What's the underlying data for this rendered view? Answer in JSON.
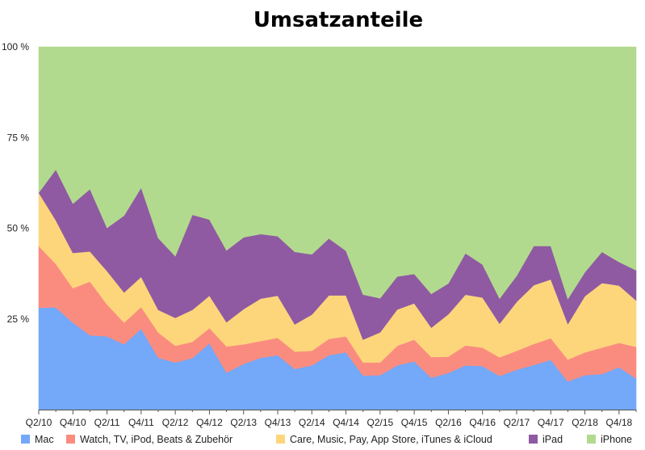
{
  "chart_data": {
    "type": "area",
    "stacked": true,
    "normalized": true,
    "title": "Umsatzanteile",
    "xlabel": "",
    "ylabel": "",
    "ylim": [
      0,
      100
    ],
    "y_ticks": [
      {
        "value": 25,
        "label": "25 %"
      },
      {
        "value": 50,
        "label": "50 %"
      },
      {
        "value": 75,
        "label": "75 %"
      },
      {
        "value": 100,
        "label": "100 %"
      }
    ],
    "x": [
      "Q2/10",
      "Q3/10",
      "Q4/10",
      "Q1/11",
      "Q2/11",
      "Q3/11",
      "Q4/11",
      "Q1/12",
      "Q2/12",
      "Q3/12",
      "Q4/12",
      "Q1/13",
      "Q2/13",
      "Q3/13",
      "Q4/13",
      "Q1/14",
      "Q2/14",
      "Q3/14",
      "Q4/14",
      "Q1/15",
      "Q2/15",
      "Q3/15",
      "Q4/15",
      "Q1/16",
      "Q2/16",
      "Q3/16",
      "Q4/16",
      "Q1/17",
      "Q2/17",
      "Q3/17",
      "Q4/17",
      "Q1/18",
      "Q2/18",
      "Q3/18",
      "Q4/18",
      "Q1/19"
    ],
    "x_tick_labels": [
      "Q2/10",
      "Q4/10",
      "Q2/11",
      "Q4/11",
      "Q2/12",
      "Q4/12",
      "Q2/13",
      "Q4/13",
      "Q2/14",
      "Q4/14",
      "Q2/15",
      "Q4/15",
      "Q2/16",
      "Q4/16",
      "Q2/17",
      "Q4/17",
      "Q2/18",
      "Q4/18"
    ],
    "series": [
      {
        "name": "Mac",
        "color": "#74a8f8",
        "values": [
          28.1,
          28.2,
          24.0,
          20.5,
          20.2,
          18.0,
          22.3,
          14.3,
          13.0,
          14.2,
          18.3,
          10.2,
          12.6,
          14.3,
          15.0,
          11.2,
          12.2,
          15.0,
          15.8,
          9.4,
          9.5,
          12.2,
          13.3,
          8.8,
          10.1,
          12.2,
          12.0,
          9.3,
          11.0,
          12.3,
          13.7,
          7.8,
          9.5,
          9.8,
          11.7,
          8.6
        ]
      },
      {
        "name": "Watch, TV, iPod, Beats & Zubehör",
        "color": "#fa8c7f",
        "values": [
          17.0,
          12.0,
          9.5,
          14.8,
          8.8,
          6.0,
          6.0,
          7.0,
          4.6,
          4.5,
          4.2,
          7.2,
          5.4,
          4.6,
          4.8,
          4.8,
          4.0,
          4.5,
          4.4,
          3.6,
          3.5,
          5.4,
          6.0,
          5.7,
          4.5,
          5.5,
          5.1,
          5.1,
          5.2,
          5.8,
          6.0,
          6.0,
          6.3,
          7.3,
          6.7,
          8.7
        ]
      },
      {
        "name": "Care, Music, Pay, App Store, iTunes & iCloud",
        "color": "#fdd67c",
        "values": [
          14.7,
          12.0,
          9.7,
          8.3,
          9.2,
          8.3,
          8.3,
          6.2,
          7.7,
          8.8,
          8.9,
          6.7,
          9.7,
          11.7,
          11.6,
          7.5,
          10.0,
          12.0,
          11.3,
          6.3,
          8.3,
          10.0,
          10.0,
          8.1,
          11.7,
          14.0,
          13.8,
          9.3,
          13.5,
          16.2,
          16.2,
          9.8,
          15.5,
          17.8,
          15.8,
          12.8
        ]
      },
      {
        "name": "iPad",
        "color": "#8f5aa2",
        "values": [
          0,
          14.0,
          13.6,
          17.2,
          11.9,
          21.2,
          24.6,
          19.8,
          17.0,
          26.2,
          21.0,
          19.8,
          19.8,
          17.8,
          16.4,
          20.0,
          16.6,
          15.7,
          12.3,
          12.4,
          9.4,
          9.1,
          8.1,
          9.3,
          8.5,
          11.4,
          9.1,
          6.9,
          7.2,
          10.8,
          9.2,
          6.9,
          6.6,
          8.6,
          6.5,
          8.3
        ]
      },
      {
        "name": "iPhone",
        "color": "#b2da8e",
        "values": [
          40.2,
          33.8,
          43.2,
          39.2,
          49.9,
          46.5,
          38.8,
          52.7,
          57.7,
          46.3,
          47.6,
          56.1,
          52.5,
          51.6,
          52.2,
          56.5,
          57.2,
          52.8,
          56.2,
          68.3,
          69.3,
          63.3,
          62.6,
          68.1,
          65.2,
          56.9,
          60.0,
          69.4,
          63.1,
          54.9,
          54.9,
          69.5,
          62.1,
          56.5,
          59.3,
          61.6
        ]
      }
    ],
    "legend": {
      "placement": "bottom"
    },
    "grid": false
  }
}
